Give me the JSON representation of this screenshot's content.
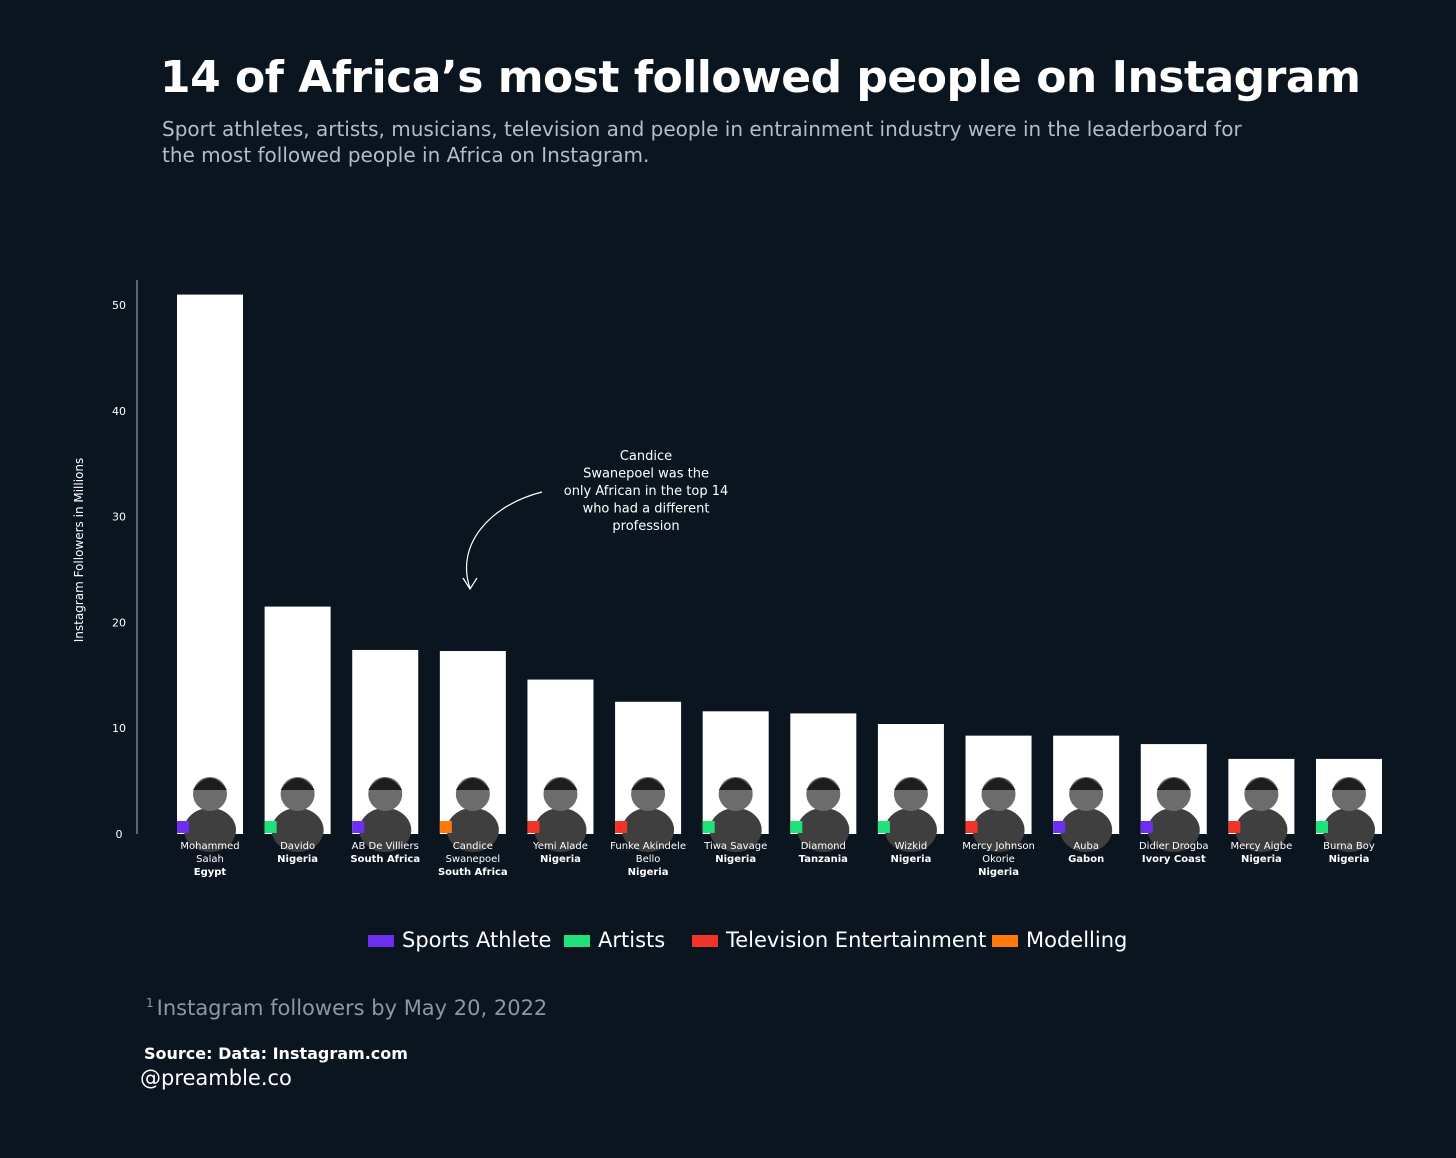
{
  "header": {
    "title": "14 of Africa’s most followed people on Instagram",
    "subtitle": "Sport athletes, artists, musicians, television and people in entrainment industry were in the leaderboard for the most followed people in Africa on Instagram."
  },
  "colors": {
    "background": "#0b1520",
    "bar": "#ffffff",
    "sports": "#6b2ff0",
    "artists": "#1fe27a",
    "television": "#f0342a",
    "modelling": "#ff7a0a"
  },
  "chart_data": {
    "type": "bar",
    "ylabel": "Instagram Followers in Millions",
    "ylim": [
      0,
      52
    ],
    "yticks": [
      0,
      10,
      20,
      30,
      40,
      50
    ],
    "grid": false,
    "categories": [
      {
        "name_lines": [
          "Mohammed",
          "Salah"
        ],
        "country": "Egypt",
        "value": 51,
        "profession": "sports"
      },
      {
        "name_lines": [
          "Davido"
        ],
        "country": "Nigeria",
        "value": 21.5,
        "profession": "artists"
      },
      {
        "name_lines": [
          "AB De Villiers"
        ],
        "country": "South Africa",
        "value": 17.4,
        "profession": "sports"
      },
      {
        "name_lines": [
          "Candice",
          "Swanepoel"
        ],
        "country": "South Africa",
        "value": 17.3,
        "profession": "modelling"
      },
      {
        "name_lines": [
          "Yemi Alade"
        ],
        "country": "Nigeria",
        "value": 14.6,
        "profession": "television"
      },
      {
        "name_lines": [
          "Funke Akindele",
          "Bello"
        ],
        "country": "Nigeria",
        "value": 12.5,
        "profession": "television"
      },
      {
        "name_lines": [
          "Tiwa Savage"
        ],
        "country": "Nigeria",
        "value": 11.6,
        "profession": "artists"
      },
      {
        "name_lines": [
          "Diamond"
        ],
        "country": "Tanzania",
        "value": 11.4,
        "profession": "artists"
      },
      {
        "name_lines": [
          "Wizkid"
        ],
        "country": "Nigeria",
        "value": 10.4,
        "profession": "artists"
      },
      {
        "name_lines": [
          "Mercy Johnson",
          "Okorie"
        ],
        "country": "Nigeria",
        "value": 9.3,
        "profession": "television"
      },
      {
        "name_lines": [
          "Auba"
        ],
        "country": "Gabon",
        "value": 9.3,
        "profession": "sports"
      },
      {
        "name_lines": [
          "Didier Drogba"
        ],
        "country": "Ivory Coast",
        "value": 8.5,
        "profession": "sports"
      },
      {
        "name_lines": [
          "Mercy Aigbe"
        ],
        "country": "Nigeria",
        "value": 7.1,
        "profession": "television"
      },
      {
        "name_lines": [
          "Burna Boy"
        ],
        "country": "Nigeria",
        "value": 7.1,
        "profession": "artists"
      }
    ],
    "annotation": "Candice Swanepoel was the only African in the top 14 who had a different profession",
    "legend": [
      {
        "key": "sports",
        "label": "Sports Athlete"
      },
      {
        "key": "artists",
        "label": "Artists"
      },
      {
        "key": "television",
        "label": "Television Entertainment"
      },
      {
        "key": "modelling",
        "label": "Modelling"
      }
    ]
  },
  "footer": {
    "footnote_mark": "1",
    "footnote": "Instagram followers by May 20, 2022",
    "source": "Source: Data: Instagram.com",
    "handle": "@preamble.co"
  }
}
